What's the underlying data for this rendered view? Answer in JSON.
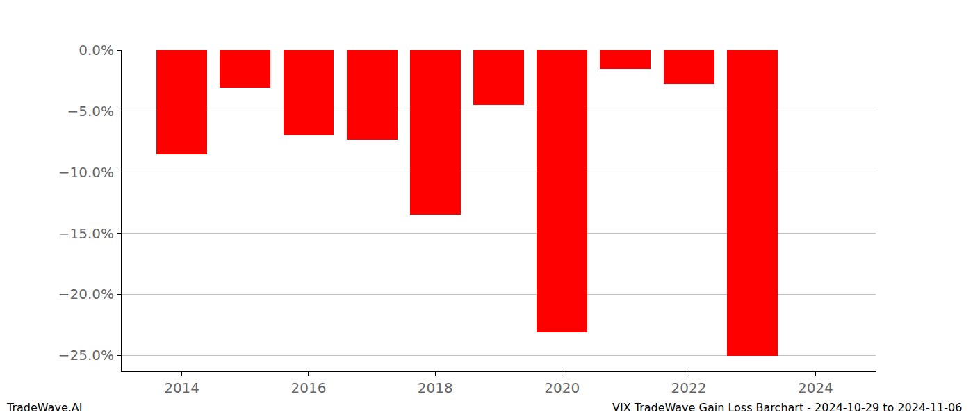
{
  "chart_data": {
    "type": "bar",
    "x": [
      2014,
      2015,
      2016,
      2017,
      2018,
      2019,
      2020,
      2021,
      2022,
      2023
    ],
    "values": [
      -8.54,
      -3.07,
      -6.95,
      -7.35,
      -13.5,
      -4.5,
      -23.1,
      -1.54,
      -2.79,
      -25.05
    ],
    "color": "#ff0000",
    "xlim": [
      2013.05,
      2024.95
    ],
    "xticks": [
      2014,
      2016,
      2018,
      2020,
      2022,
      2024
    ],
    "ylim": [
      -26.3,
      0
    ],
    "yticks": [
      {
        "value": 0,
        "label": "0.0%"
      },
      {
        "value": -5,
        "label": "−5.0%"
      },
      {
        "value": -10,
        "label": "−10.0%"
      },
      {
        "value": -15,
        "label": "−15.0%"
      },
      {
        "value": -20,
        "label": "−20.0%"
      },
      {
        "value": -25,
        "label": "−25.0%"
      }
    ],
    "grid": true,
    "annotations": [
      "TradeWave.AI",
      "VIX TradeWave Gain Loss Barchart - 2024-10-29 to 2024-11-06"
    ]
  }
}
